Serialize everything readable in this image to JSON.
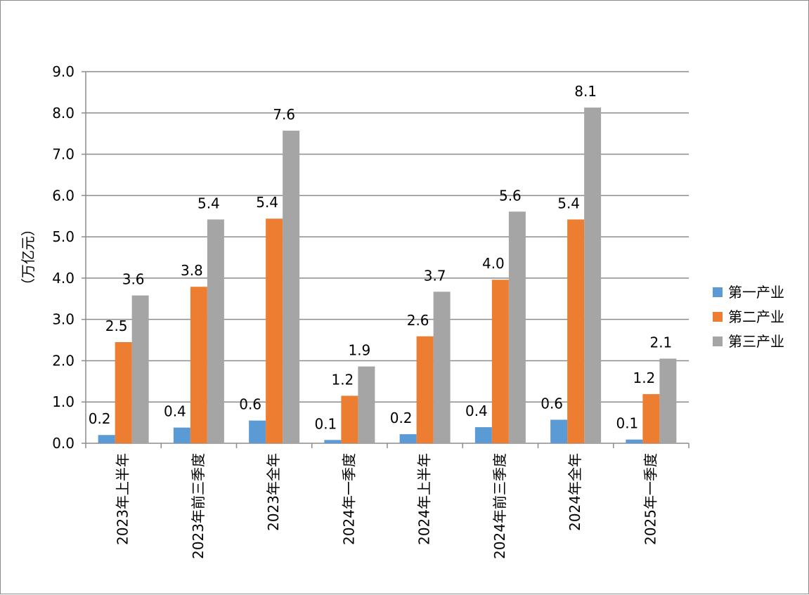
{
  "chart_data": {
    "type": "bar",
    "title": "",
    "xlabel": "",
    "ylabel": "（万亿元）",
    "ylim": [
      0,
      9
    ],
    "ytick_step": 1,
    "yticks": [
      "0.0",
      "1.0",
      "2.0",
      "3.0",
      "4.0",
      "5.0",
      "6.0",
      "7.0",
      "8.0",
      "9.0"
    ],
    "grid": true,
    "legend_position": "right",
    "categories": [
      "2023年上半年",
      "2023年前三季度",
      "2023年全年",
      "2024年一季度",
      "2024年上半年",
      "2024年前三季度",
      "2024年全年",
      "2025年一季度"
    ],
    "series": [
      {
        "name": "第一产业",
        "color": "#5b9bd5",
        "values": [
          0.2,
          0.38,
          0.55,
          0.08,
          0.22,
          0.39,
          0.57,
          0.09
        ],
        "labels": [
          "0.2",
          "0.4",
          "0.6",
          "0.1",
          "0.2",
          "0.4",
          "0.6",
          "0.1"
        ]
      },
      {
        "name": "第二产业",
        "color": "#ed7d31",
        "values": [
          2.45,
          3.79,
          5.44,
          1.15,
          2.59,
          3.96,
          5.42,
          1.19
        ],
        "labels": [
          "2.5",
          "3.8",
          "5.4",
          "1.2",
          "2.6",
          "4.0",
          "5.4",
          "1.2"
        ]
      },
      {
        "name": "第三产业",
        "color": "#a5a5a5",
        "values": [
          3.58,
          5.42,
          7.57,
          1.86,
          3.67,
          5.61,
          8.13,
          2.05
        ],
        "labels": [
          "3.6",
          "5.4",
          "7.6",
          "1.9",
          "3.7",
          "5.6",
          "8.1",
          "2.1"
        ]
      }
    ]
  }
}
